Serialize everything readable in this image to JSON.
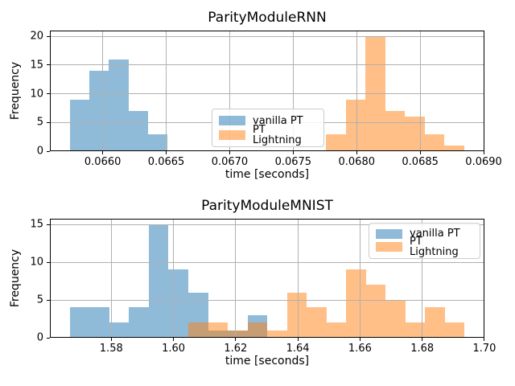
{
  "colors": {
    "vanilla": "rgba(31,119,180,0.5)",
    "lightning": "rgba(255,127,14,0.5)",
    "vanilla_solid": "#8fbbd9",
    "lightning_solid": "#ffbf86",
    "grid": "#b0b0b0",
    "spine": "#000000"
  },
  "legend": {
    "vanilla_label": "vanilla PT",
    "lightning_label": "PT Lightning"
  },
  "chart_data": [
    {
      "type": "histogram",
      "title": "ParityModuleRNN",
      "xlabel": "time [seconds]",
      "ylabel": "Frequency",
      "xlim": [
        0.065584,
        0.069006
      ],
      "ylim": [
        0,
        21
      ],
      "grid": true,
      "legend_position": "lower center",
      "xticks": [
        0.066,
        0.0665,
        0.067,
        0.0675,
        0.068,
        0.0685,
        0.069
      ],
      "xtick_labels": [
        "0.0660",
        "0.0665",
        "0.0670",
        "0.0675",
        "0.0680",
        "0.0685",
        "0.0690"
      ],
      "yticks": [
        0,
        5,
        10,
        15,
        20
      ],
      "ytick_labels": [
        "0",
        "5",
        "10",
        "15",
        "20"
      ],
      "series": [
        {
          "name": "vanilla PT",
          "color_key": "vanilla",
          "bin_edges": [
            0.06574,
            0.065894,
            0.066048,
            0.066202,
            0.066356,
            0.06651
          ],
          "counts": [
            9,
            14,
            16,
            7,
            3
          ]
        },
        {
          "name": "PT Lightning",
          "color_key": "lightning",
          "bin_edges": [
            0.067757,
            0.067913,
            0.068068,
            0.068224,
            0.068379,
            0.068535,
            0.06869,
            0.068846
          ],
          "counts": [
            3,
            9,
            20,
            7,
            6,
            3,
            1
          ]
        }
      ]
    },
    {
      "type": "histogram",
      "title": "ParityModuleMNIST",
      "xlabel": "time [seconds]",
      "ylabel": "Frequency",
      "xlim": [
        1.56026,
        1.70001
      ],
      "ylim": [
        0,
        15.75
      ],
      "grid": true,
      "legend_position": "upper right",
      "xticks": [
        1.58,
        1.6,
        1.62,
        1.64,
        1.66,
        1.68,
        1.7
      ],
      "xtick_labels": [
        "1.58",
        "1.60",
        "1.62",
        "1.64",
        "1.66",
        "1.68",
        "1.70"
      ],
      "yticks": [
        0,
        5,
        10,
        15
      ],
      "ytick_labels": [
        "0",
        "5",
        "10",
        "15"
      ],
      "series": [
        {
          "name": "vanilla PT",
          "color_key": "vanilla",
          "bin_edges": [
            1.56662,
            1.57298,
            1.57934,
            1.5857,
            1.59206,
            1.59842,
            1.60478,
            1.61114,
            1.6175,
            1.62386,
            1.63022
          ],
          "counts": [
            4,
            4,
            2,
            4,
            15,
            9,
            6,
            1,
            1,
            3
          ]
        },
        {
          "name": "PT Lightning",
          "color_key": "lightning",
          "bin_edges": [
            1.60478,
            1.61113,
            1.61748,
            1.62382,
            1.63017,
            1.63652,
            1.64287,
            1.64922,
            1.65557,
            1.66191,
            1.66826,
            1.67461,
            1.68096,
            1.68731,
            1.69365
          ],
          "counts": [
            2,
            2,
            1,
            2,
            1,
            6,
            4,
            2,
            9,
            7,
            5,
            2,
            4,
            2
          ]
        }
      ]
    }
  ]
}
